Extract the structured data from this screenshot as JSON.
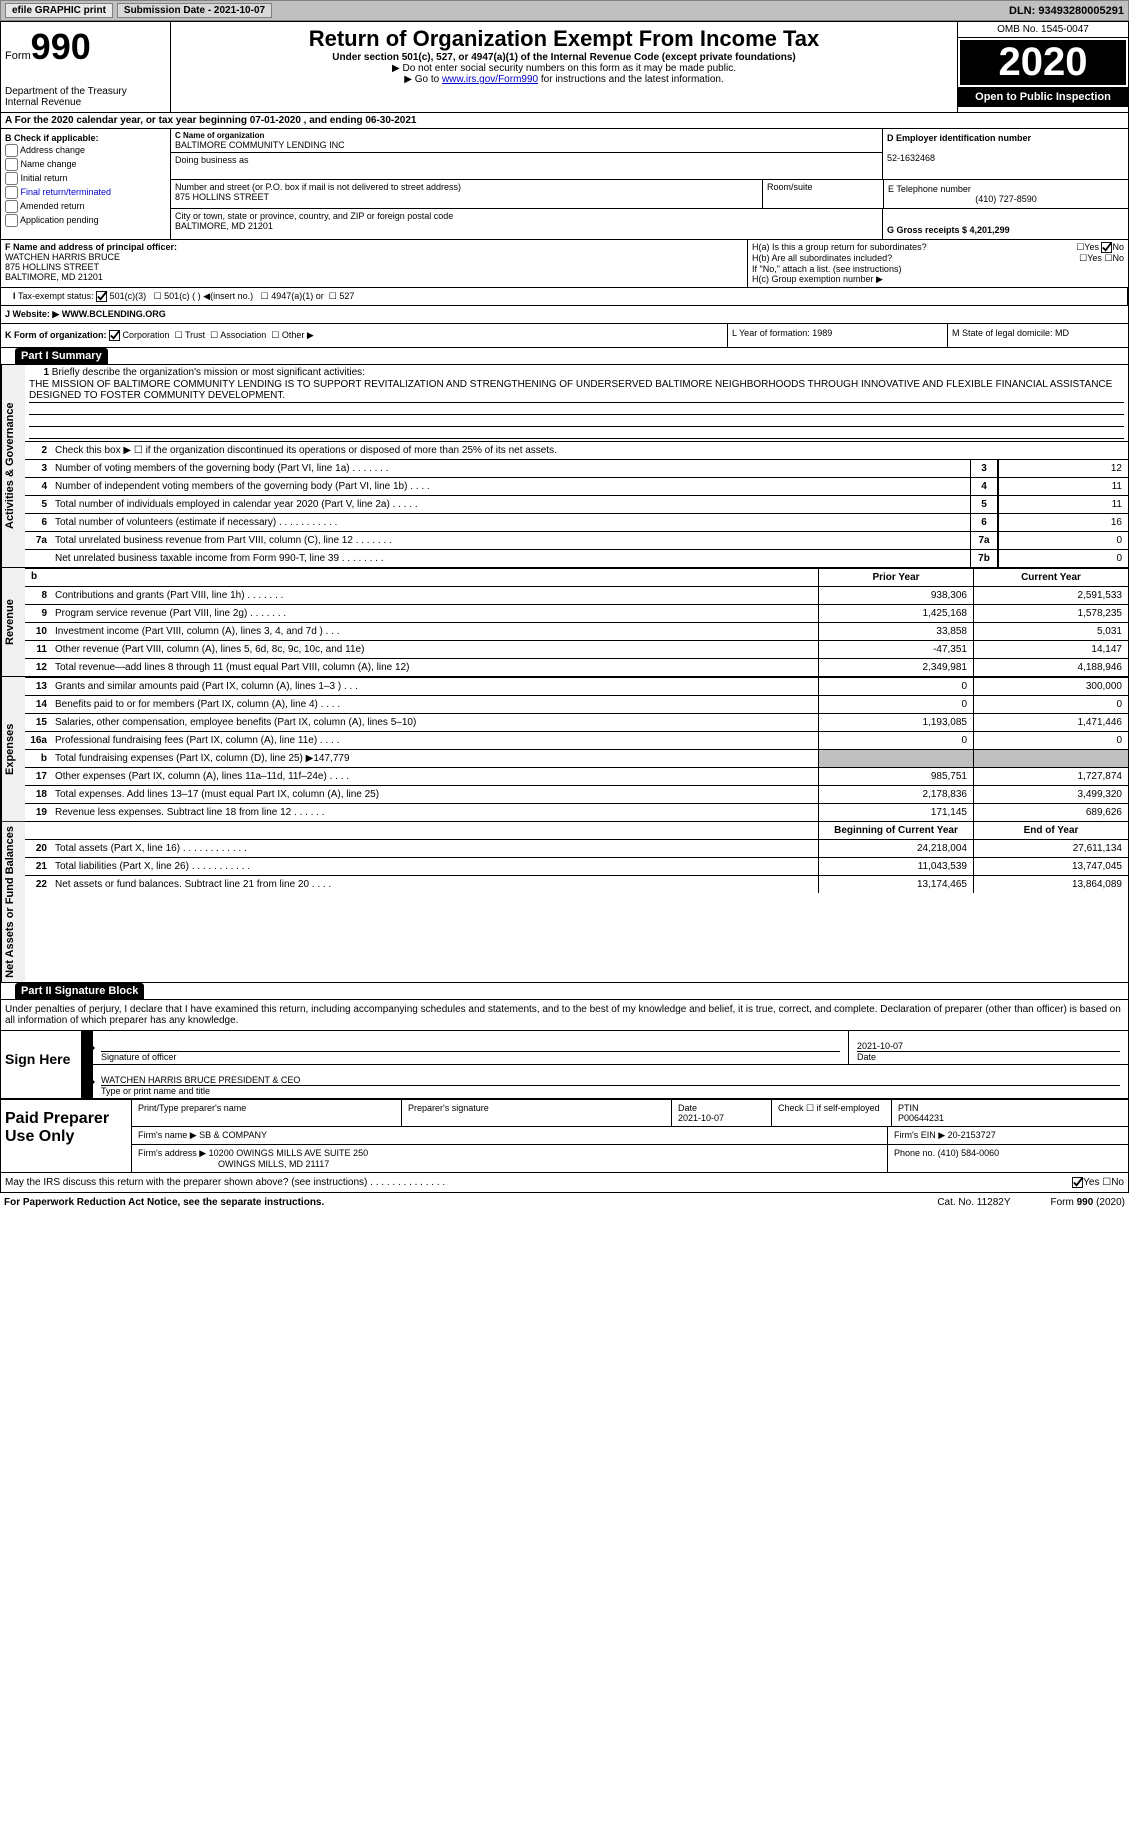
{
  "top": {
    "efile": "efile GRAPHIC print",
    "submission": "Submission Date - 2021-10-07",
    "dln": "DLN: 93493280005291"
  },
  "header": {
    "form_word": "Form",
    "form_num": "990",
    "title": "Return of Organization Exempt From Income Tax",
    "sub1": "Under section 501(c), 527, or 4947(a)(1) of the Internal Revenue Code (except private foundations)",
    "sub2": "▶ Do not enter social security numbers on this form as it may be made public.",
    "sub3_pre": "▶ Go to ",
    "sub3_link": "www.irs.gov/Form990",
    "sub3_post": " for instructions and the latest information.",
    "dept": "Department of the Treasury\nInternal Revenue",
    "omb": "OMB No. 1545-0047",
    "year": "2020",
    "inspect": "Open to Public Inspection"
  },
  "row_a": "For the 2020 calendar year, or tax year beginning 07-01-2020  , and ending 06-30-2021",
  "b": {
    "hdr": "B Check if applicable:",
    "opts": [
      "Address change",
      "Name change",
      "Initial return",
      "Final return/terminated",
      "Amended return",
      "Application pending"
    ]
  },
  "c": {
    "name_lbl": "C Name of organization",
    "name": "BALTIMORE COMMUNITY LENDING INC",
    "dba_lbl": "Doing business as",
    "addr_lbl": "Number and street (or P.O. box if mail is not delivered to street address)",
    "addr": "875 HOLLINS STREET",
    "room_lbl": "Room/suite",
    "city_lbl": "City or town, state or province, country, and ZIP or foreign postal code",
    "city": "BALTIMORE, MD  21201"
  },
  "d": {
    "ein_lbl": "D Employer identification number",
    "ein": "52-1632468",
    "phone_lbl": "E Telephone number",
    "phone": "(410) 727-8590",
    "gross_lbl": "G Gross receipts $ 4,201,299"
  },
  "f": {
    "lbl": "F  Name and address of principal officer:",
    "name": "WATCHEN HARRIS BRUCE",
    "addr1": "875 HOLLINS STREET",
    "addr2": "BALTIMORE, MD  21201"
  },
  "h": {
    "a": "H(a)  Is this a group return for subordinates?",
    "b": "H(b)  Are all subordinates included?",
    "note": "If \"No,\" attach a list. (see instructions)",
    "c": "H(c)  Group exemption number ▶",
    "yes": "Yes",
    "no": "No"
  },
  "i": {
    "lbl": "Tax-exempt status:",
    "o1": "501(c)(3)",
    "o2": "501(c) (  ) ◀(insert no.)",
    "o3": "4947(a)(1) or",
    "o4": "527"
  },
  "j": {
    "lbl": "J Website: ▶",
    "val": " WWW.BCLENDING.ORG"
  },
  "k": {
    "lbl": "K Form of organization:",
    "o1": "Corporation",
    "o2": "Trust",
    "o3": "Association",
    "o4": "Other ▶"
  },
  "l": "L Year of formation: 1989",
  "m": "M State of legal domicile: MD",
  "part1": "Part I    Summary",
  "part2": "Part II    Signature Block",
  "sections": {
    "gov": "Activities & Governance",
    "rev": "Revenue",
    "exp": "Expenses",
    "net": "Net Assets or Fund Balances"
  },
  "mission": {
    "num": "1",
    "lbl": "Briefly describe the organization's mission or most significant activities:",
    "txt": "THE MISSION OF BALTIMORE COMMUNITY LENDING IS TO SUPPORT REVITALIZATION AND STRENGTHENING OF UNDERSERVED BALTIMORE NEIGHBORHOODS THROUGH INNOVATIVE AND FLEXIBLE FINANCIAL ASSISTANCE DESIGNED TO FOSTER COMMUNITY DEVELOPMENT."
  },
  "lines_gov": [
    {
      "n": "2",
      "t": "Check this box ▶ ☐ if the organization discontinued its operations or disposed of more than 25% of its net assets."
    },
    {
      "n": "3",
      "t": "Number of voting members of the governing body (Part VI, line 1a)  .    .    .    .    .    .    .",
      "b": "3",
      "v": "12"
    },
    {
      "n": "4",
      "t": "Number of independent voting members of the governing body (Part VI, line 1b)  .    .    .    .",
      "b": "4",
      "v": "11"
    },
    {
      "n": "5",
      "t": "Total number of individuals employed in calendar year 2020 (Part V, line 2a)  .    .    .    .    .",
      "b": "5",
      "v": "11"
    },
    {
      "n": "6",
      "t": "Total number of volunteers (estimate if necessary)  .    .    .    .    .    .    .    .    .    .    .",
      "b": "6",
      "v": "16"
    },
    {
      "n": "7a",
      "t": "Total unrelated business revenue from Part VIII, column (C), line 12  .    .    .    .    .    .    .",
      "b": "7a",
      "v": "0"
    },
    {
      "n": "",
      "t": "Net unrelated business taxable income from Form 990-T, line 39  .    .    .    .    .    .    .    .",
      "b": "7b",
      "v": "0"
    }
  ],
  "col_hdr": {
    "b": "b",
    "prior": "Prior Year",
    "current": "Current Year",
    "begin": "Beginning of Current Year",
    "end": "End of Year"
  },
  "lines_rev": [
    {
      "n": "8",
      "t": "Contributions and grants (Part VIII, line 1h)  .    .    .    .    .    .    .",
      "p": "938,306",
      "c": "2,591,533"
    },
    {
      "n": "9",
      "t": "Program service revenue (Part VIII, line 2g)  .    .    .    .    .    .    .",
      "p": "1,425,168",
      "c": "1,578,235"
    },
    {
      "n": "10",
      "t": "Investment income (Part VIII, column (A), lines 3, 4, and 7d )  .    .    .",
      "p": "33,858",
      "c": "5,031"
    },
    {
      "n": "11",
      "t": "Other revenue (Part VIII, column (A), lines 5, 6d, 8c, 9c, 10c, and 11e)",
      "p": "-47,351",
      "c": "14,147"
    },
    {
      "n": "12",
      "t": "Total revenue—add lines 8 through 11 (must equal Part VIII, column (A), line 12)",
      "p": "2,349,981",
      "c": "4,188,946"
    }
  ],
  "lines_exp": [
    {
      "n": "13",
      "t": "Grants and similar amounts paid (Part IX, column (A), lines 1–3 )  .    .    .",
      "p": "0",
      "c": "300,000"
    },
    {
      "n": "14",
      "t": "Benefits paid to or for members (Part IX, column (A), line 4)  .    .    .    .",
      "p": "0",
      "c": "0"
    },
    {
      "n": "15",
      "t": "Salaries, other compensation, employee benefits (Part IX, column (A), lines 5–10)",
      "p": "1,193,085",
      "c": "1,471,446"
    },
    {
      "n": "16a",
      "t": "Professional fundraising fees (Part IX, column (A), line 11e)  .    .    .    .",
      "p": "0",
      "c": "0"
    },
    {
      "n": "b",
      "t": "Total fundraising expenses (Part IX, column (D), line 25) ▶147,779",
      "gray": true
    },
    {
      "n": "17",
      "t": "Other expenses (Part IX, column (A), lines 11a–11d, 11f–24e)  .    .    .    .",
      "p": "985,751",
      "c": "1,727,874"
    },
    {
      "n": "18",
      "t": "Total expenses. Add lines 13–17 (must equal Part IX, column (A), line 25)",
      "p": "2,178,836",
      "c": "3,499,320"
    },
    {
      "n": "19",
      "t": "Revenue less expenses. Subtract line 18 from line 12  .    .    .    .    .    .",
      "p": "171,145",
      "c": "689,626"
    }
  ],
  "lines_net": [
    {
      "n": "20",
      "t": "Total assets (Part X, line 16)  .    .    .    .    .    .    .    .    .    .    .    .",
      "p": "24,218,004",
      "c": "27,611,134"
    },
    {
      "n": "21",
      "t": "Total liabilities (Part X, line 26)  .    .    .    .    .    .    .    .    .    .    .",
      "p": "11,043,539",
      "c": "13,747,045"
    },
    {
      "n": "22",
      "t": "Net assets or fund balances. Subtract line 21 from line 20  .    .    .    .",
      "p": "13,174,465",
      "c": "13,864,089"
    }
  ],
  "sig": {
    "note": "Under penalties of perjury, I declare that I have examined this return, including accompanying schedules and statements, and to the best of my knowledge and belief, it is true, correct, and complete. Declaration of preparer (other than officer) is based on all information of which preparer has any knowledge.",
    "sign_here": "Sign Here",
    "sig_of": "Signature of officer",
    "date": "Date",
    "date_val": "2021-10-07",
    "officer": "WATCHEN HARRIS BRUCE  PRESIDENT & CEO",
    "type_name": "Type or print name and title",
    "paid": "Paid Preparer Use Only",
    "prep_name_lbl": "Print/Type preparer's name",
    "prep_sig_lbl": "Preparer's signature",
    "prep_date_lbl": "Date",
    "prep_date": "2021-10-07",
    "check_self": "Check ☐ if self-employed",
    "ptin_lbl": "PTIN",
    "ptin": "P00644231",
    "firm_name_lbl": "Firm's name   ▶",
    "firm_name": "SB & COMPANY",
    "firm_ein_lbl": "Firm's EIN ▶",
    "firm_ein": "20-2153727",
    "firm_addr_lbl": "Firm's address ▶",
    "firm_addr": "10200 OWINGS MILLS AVE SUITE 250",
    "firm_addr2": "OWINGS MILLS, MD  21117",
    "firm_phone_lbl": "Phone no.",
    "firm_phone": "(410) 584-0060"
  },
  "footer": {
    "discuss": "May the IRS discuss this return with the preparer shown above? (see instructions)  .    .    .    .    .    .    .    .    .    .    .    .    .    .",
    "paperwork": "For Paperwork Reduction Act Notice, see the separate instructions.",
    "cat": "Cat. No. 11282Y",
    "form": "Form 990 (2020)"
  }
}
